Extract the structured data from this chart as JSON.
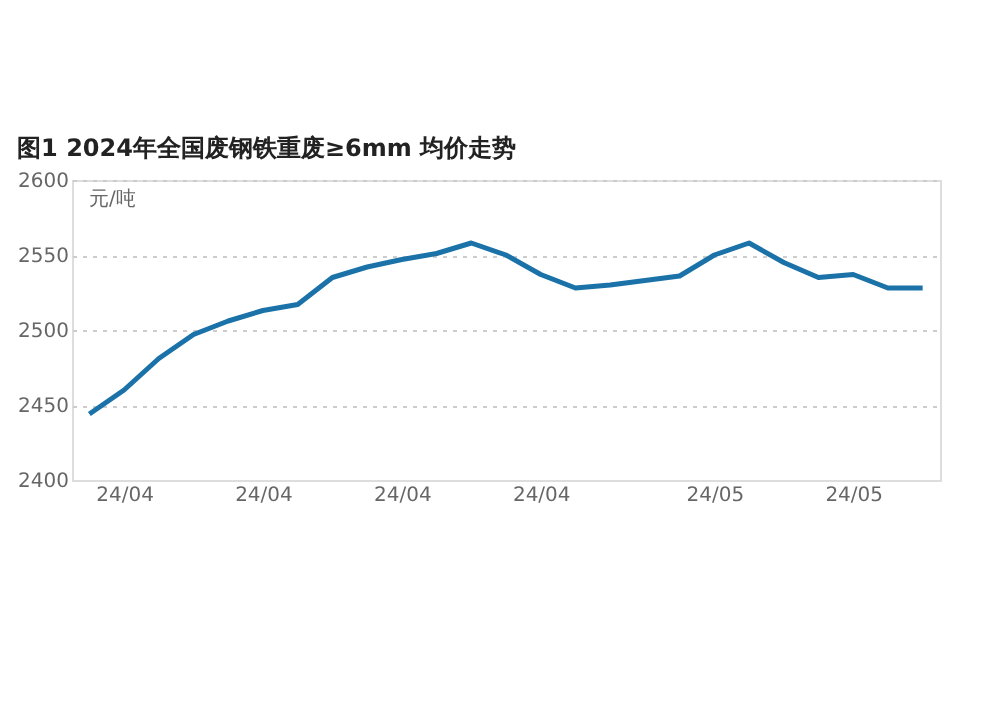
{
  "chart_data": {
    "type": "line",
    "title": "图1 2024年全国废钢铁重废≥6mm 均价走势",
    "ylabel": "元/吨",
    "categories": [
      null,
      "24/04",
      null,
      null,
      null,
      "24/04",
      null,
      null,
      null,
      "24/04",
      null,
      null,
      null,
      "24/04",
      null,
      null,
      null,
      null,
      "24/05",
      null,
      null,
      null,
      "24/05",
      null,
      null
    ],
    "series": [
      {
        "color": "#1b72a8",
        "values": [
          2444,
          2460,
          2481,
          2497,
          2506,
          2513,
          2517,
          2535,
          2542,
          2547,
          2551,
          2558,
          2550,
          2537,
          2528,
          2530,
          2533,
          2536,
          2550,
          2558,
          2545,
          2535,
          2537,
          2528,
          2528
        ]
      }
    ],
    "ylim": [
      2400,
      2600
    ],
    "yticks": [
      2400,
      2450,
      2500,
      2550,
      2600
    ],
    "grid": "y",
    "legend": false,
    "marker": "none",
    "line_style": "solid"
  }
}
